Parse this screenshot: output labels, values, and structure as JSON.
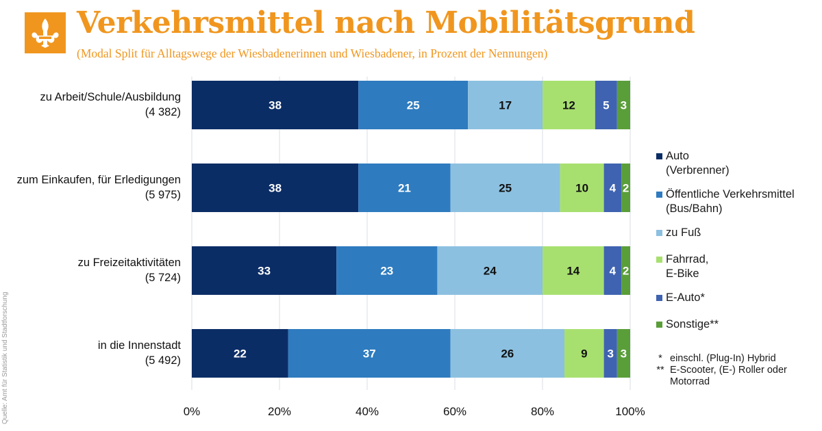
{
  "header": {
    "title": "Verkehrsmittel nach Mobilitätsgrund",
    "subtitle": "(Modal Split für Alltagswege der Wiesbadenerinnen und Wiesbadener, in Prozent der Nennungen)",
    "logo_icon": "fleur-de-lis-icon",
    "logo_color": "#f0961e"
  },
  "source": "Quelle: Amt für Statistik und Stadtforschung",
  "chart_data": {
    "type": "bar",
    "orientation": "horizontal",
    "stacked": true,
    "categories": [
      "zu Arbeit/Schule/Ausbildung\n(4 382)",
      "zum Einkaufen, für Erledigungen\n(5 975)",
      "zu Freizeitaktivitäten\n(5 724)",
      "in die Innenstadt\n(5 492)"
    ],
    "series": [
      {
        "name": "Auto\n(Verbrenner)",
        "color": "#0b2d66",
        "label_color": "#ffffff",
        "values": [
          38,
          38,
          33,
          22
        ]
      },
      {
        "name": "Öffentliche Verkehrsmittel\n(Bus/Bahn)",
        "color": "#2e7bbf",
        "label_color": "#ffffff",
        "values": [
          25,
          21,
          23,
          37
        ]
      },
      {
        "name": "zu Fuß",
        "color": "#8cc0e0",
        "label_color": "#111111",
        "values": [
          17,
          25,
          24,
          26
        ]
      },
      {
        "name": "Fahrrad,\nE-Bike",
        "color": "#a8e070",
        "label_color": "#111111",
        "values": [
          12,
          10,
          14,
          9
        ]
      },
      {
        "name": "E-Auto*",
        "color": "#3f63b0",
        "label_color": "#ffffff",
        "values": [
          5,
          4,
          4,
          3
        ]
      },
      {
        "name": "Sonstige**",
        "color": "#5a9e3a",
        "label_color": "#ffffff",
        "values": [
          3,
          2,
          2,
          3
        ]
      }
    ],
    "xlim": [
      0,
      100
    ],
    "x_ticks": [
      "0%",
      "20%",
      "40%",
      "60%",
      "80%",
      "100%"
    ],
    "grid": true,
    "legend_position": "right"
  },
  "footnotes": [
    {
      "mark": "*",
      "text": "einschl. (Plug-In) Hybrid"
    },
    {
      "mark": "**",
      "text": "E-Scooter, (E-) Roller oder Motorrad"
    }
  ]
}
